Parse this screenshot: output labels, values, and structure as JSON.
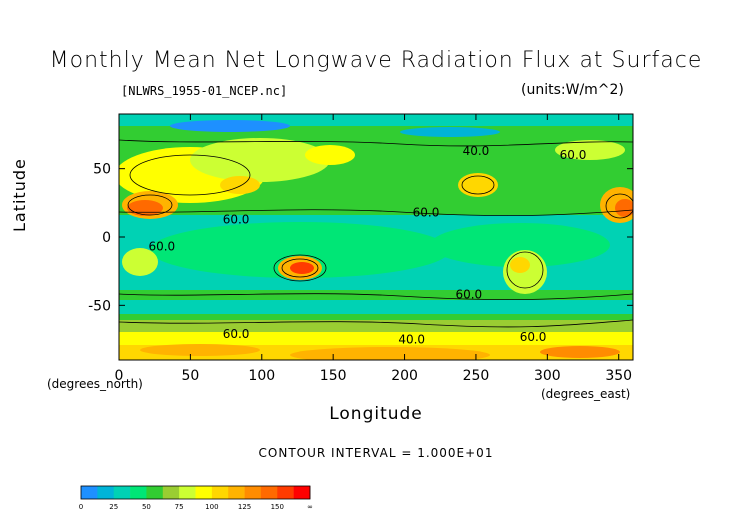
{
  "chart_data": {
    "type": "heatmap",
    "title": "Monthly Mean Net Longwave Radiation Flux at Surface",
    "file_label": "[NLWRS_1955-01_NCEP.nc]",
    "units_label": "(units:W/m^2)",
    "xlabel": "Longitude",
    "ylabel": "Latitude",
    "x_unit_label": "(degrees_east)",
    "y_unit_label": "(degrees_north)",
    "xlim": [
      0,
      360
    ],
    "ylim": [
      -90,
      90
    ],
    "x_ticks": [
      "0",
      "50",
      "100",
      "150",
      "200",
      "250",
      "300",
      "350"
    ],
    "x_tick_values": [
      0,
      50,
      100,
      150,
      200,
      250,
      300,
      350
    ],
    "y_ticks": [
      "50",
      "0",
      "-50"
    ],
    "y_tick_values": [
      50,
      0,
      -50
    ],
    "contour_interval_text": "CONTOUR INTERVAL = 1.000E+01",
    "contour_labels": [
      {
        "text": "60.0",
        "lon": 82,
        "lat": 10
      },
      {
        "text": "60.0",
        "lon": 30,
        "lat": -10
      },
      {
        "text": "60.0",
        "lon": 215,
        "lat": 15
      },
      {
        "text": "60.0",
        "lon": 245,
        "lat": -45
      },
      {
        "text": "60.0",
        "lon": 82,
        "lat": -74
      },
      {
        "text": "40.0",
        "lon": 250,
        "lat": 60
      },
      {
        "text": "40.0",
        "lon": 205,
        "lat": -78
      },
      {
        "text": "60.0",
        "lon": 318,
        "lat": 57
      },
      {
        "text": "60.0",
        "lon": 290,
        "lat": -76
      }
    ],
    "colorbar": {
      "labels": [
        "0",
        "25",
        "50",
        "75",
        "100",
        "125",
        "150",
        "∞"
      ],
      "colors": [
        "#1e90ff",
        "#00b4d8",
        "#00d2b4",
        "#00e676",
        "#32cd32",
        "#9acd32",
        "#ccff33",
        "#ffff00",
        "#ffd700",
        "#ffb300",
        "#ff8c00",
        "#ff6a00",
        "#ff3b00",
        "#ff0000"
      ]
    }
  }
}
